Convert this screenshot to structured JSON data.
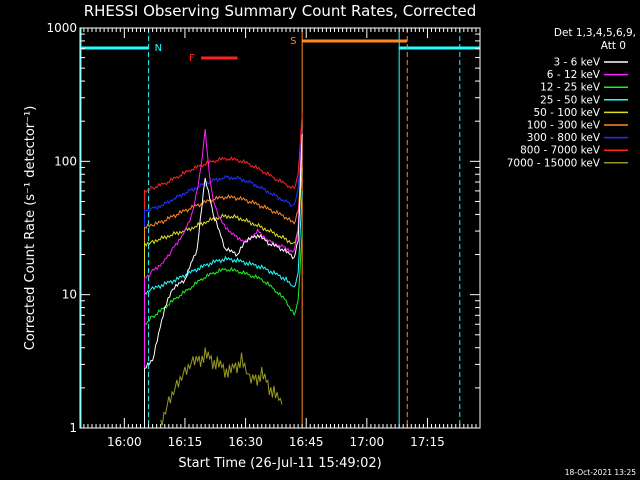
{
  "chart_data": {
    "type": "line",
    "title": "RHESSI Observing Summary Count Rates, Corrected",
    "xlabel": "Start Time (26-Jul-11 15:49:02)",
    "ylabel": "Corrected Count Rate (s⁻¹ detector⁻¹)",
    "yscale": "log",
    "ylim": [
      1,
      1000
    ],
    "xlim": [
      "15:49:02",
      "17:28:00"
    ],
    "x_ticks": [
      "16:00",
      "16:15",
      "16:30",
      "16:45",
      "17:00",
      "17:15"
    ],
    "y_ticks": [
      "1",
      "10",
      "100",
      "1000"
    ],
    "grid": false,
    "legend": {
      "position": "top-right",
      "header_line1": "Det 1,3,4,5,6,9,",
      "header_line2": "Att 0",
      "entries": [
        {
          "label": "3 - 6 keV",
          "color": "#ffffff"
        },
        {
          "label": "6 - 12 keV",
          "color": "#ff22ff"
        },
        {
          "label": "12 - 25 keV",
          "color": "#22ee22"
        },
        {
          "label": "25 - 50 keV",
          "color": "#22ffff"
        },
        {
          "label": "50 - 100 keV",
          "color": "#dddd22"
        },
        {
          "label": "100 - 300 keV",
          "color": "#ff8822"
        },
        {
          "label": "300 - 800 keV",
          "color": "#2233ff"
        },
        {
          "label": "800 - 7000 keV",
          "color": "#ff2222"
        },
        {
          "label": "7000 - 15000 keV",
          "color": "#999922"
        }
      ]
    },
    "series": [
      {
        "name": "3 - 6 keV",
        "color": "#ffffff",
        "x": [
          "16:05",
          "16:07",
          "16:10",
          "16:12",
          "16:15",
          "16:18",
          "16:20",
          "16:22",
          "16:25",
          "16:28",
          "16:30",
          "16:33",
          "16:36",
          "16:39",
          "16:42",
          "16:43",
          "16:44"
        ],
        "y": [
          2.8,
          3.2,
          8,
          11,
          13,
          22,
          75,
          40,
          22,
          20,
          25,
          28,
          24,
          22,
          19,
          25,
          160
        ]
      },
      {
        "name": "6 - 12 keV",
        "color": "#ff22ff",
        "x": [
          "16:05",
          "16:07",
          "16:10",
          "16:12",
          "16:15",
          "16:17",
          "16:19",
          "16:20",
          "16:21",
          "16:22",
          "16:24",
          "16:27",
          "16:30",
          "16:33",
          "16:36",
          "16:39",
          "16:42",
          "16:43",
          "16:44"
        ],
        "y": [
          13,
          15,
          18,
          22,
          30,
          42,
          90,
          170,
          80,
          50,
          35,
          28,
          25,
          30,
          25,
          23,
          21,
          30,
          170
        ]
      },
      {
        "name": "12 - 25 keV",
        "color": "#22ee22",
        "x": [
          "16:05",
          "16:07",
          "16:10",
          "16:13",
          "16:16",
          "16:19",
          "16:22",
          "16:25",
          "16:28",
          "16:31",
          "16:34",
          "16:37",
          "16:40",
          "16:42",
          "16:43",
          "16:44"
        ],
        "y": [
          6,
          6.8,
          8,
          9.5,
          11,
          13,
          14.5,
          15.5,
          15,
          14,
          13,
          11,
          9,
          7,
          9,
          30
        ]
      },
      {
        "name": "25 - 50 keV",
        "color": "#22ffff",
        "x": [
          "16:05",
          "16:07",
          "16:10",
          "16:13",
          "16:16",
          "16:19",
          "16:22",
          "16:25",
          "16:28",
          "16:31",
          "16:34",
          "16:37",
          "16:40",
          "16:42",
          "16:43",
          "16:44"
        ],
        "y": [
          10,
          11,
          12,
          13,
          14.5,
          16,
          17.5,
          18.5,
          18,
          17,
          16,
          14.5,
          13,
          11,
          14,
          60
        ]
      },
      {
        "name": "50 - 100 keV",
        "color": "#dddd22",
        "x": [
          "16:05",
          "16:07",
          "16:10",
          "16:13",
          "16:16",
          "16:19",
          "16:22",
          "16:25",
          "16:28",
          "16:31",
          "16:34",
          "16:37",
          "16:40",
          "16:42",
          "16:43",
          "16:44"
        ],
        "y": [
          24,
          25,
          27,
          29,
          31,
          34,
          37,
          39,
          38,
          35,
          32,
          29,
          26,
          24,
          30,
          90
        ]
      },
      {
        "name": "100 - 300 keV",
        "color": "#ff8822",
        "x": [
          "16:05",
          "16:07",
          "16:10",
          "16:13",
          "16:16",
          "16:19",
          "16:22",
          "16:25",
          "16:28",
          "16:31",
          "16:34",
          "16:37",
          "16:40",
          "16:42",
          "16:43",
          "16:44"
        ],
        "y": [
          32,
          33,
          36,
          40,
          44,
          48,
          52,
          54,
          53,
          50,
          46,
          42,
          38,
          34,
          42,
          110
        ]
      },
      {
        "name": "300 - 800 keV",
        "color": "#2233ff",
        "x": [
          "16:05",
          "16:07",
          "16:10",
          "16:13",
          "16:16",
          "16:19",
          "16:22",
          "16:25",
          "16:28",
          "16:31",
          "16:34",
          "16:37",
          "16:40",
          "16:42",
          "16:43",
          "16:44"
        ],
        "y": [
          42,
          44,
          48,
          54,
          60,
          66,
          72,
          76,
          75,
          70,
          63,
          56,
          50,
          46,
          60,
          170
        ]
      },
      {
        "name": "800 - 7000 keV",
        "color": "#ff2222",
        "x": [
          "16:05",
          "16:07",
          "16:10",
          "16:13",
          "16:16",
          "16:19",
          "16:22",
          "16:25",
          "16:28",
          "16:31",
          "16:34",
          "16:37",
          "16:40",
          "16:42",
          "16:43",
          "16:44"
        ],
        "y": [
          60,
          63,
          68,
          76,
          85,
          93,
          100,
          105,
          102,
          95,
          85,
          75,
          67,
          62,
          80,
          230
        ]
      },
      {
        "name": "7000 - 15000 keV",
        "color": "#999922",
        "x": [
          "16:09",
          "16:11",
          "16:13",
          "16:15",
          "16:17",
          "16:20",
          "16:23",
          "16:26",
          "16:29",
          "16:31",
          "16:34",
          "16:37",
          "16:39"
        ],
        "y": [
          1,
          1.5,
          2,
          2.5,
          3,
          3.5,
          3,
          2.6,
          3.2,
          2.2,
          2.5,
          1.8,
          1.5
        ]
      }
    ],
    "annotations": {
      "night_label": "N",
      "flare_label": "F",
      "saa_label": "S",
      "night_color": "#22ffff",
      "flare_color": "#ff2222",
      "saa_color": "#ff8822",
      "night_periods": [
        [
          "15:49:02",
          "16:06"
        ],
        [
          "17:08",
          "17:28:00"
        ]
      ],
      "flare_period": [
        "16:19",
        "16:28"
      ],
      "saa_period": [
        "16:44",
        "17:10"
      ],
      "dashed_markers": [
        "16:06",
        "17:10",
        "17:23"
      ]
    }
  },
  "footer": {
    "timestamp": "18-Oct-2021 13:25"
  }
}
